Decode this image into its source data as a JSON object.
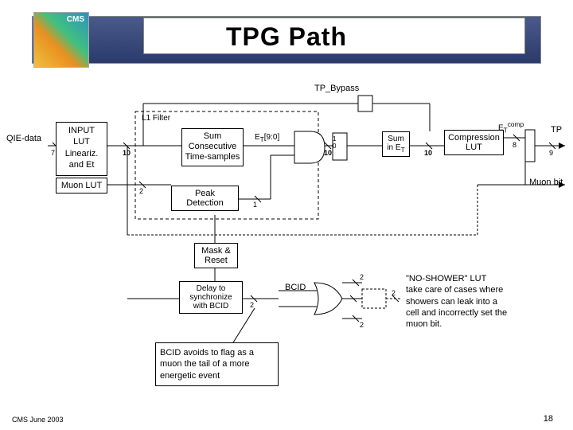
{
  "title": "TPG Path",
  "logo_text": "CMS",
  "footer": "CMS June 2003",
  "page_number": "18",
  "labels": {
    "tp_bypass": "TP_Bypass",
    "l1_filter": "L1 Filter",
    "qie_data": "QIE-data",
    "input_lut": "INPUT\nLUT\nLineariz.\nand Et",
    "muon_lut": "Muon LUT",
    "sum_block": "Sum\nConsecutive\nTime-samples",
    "et_90": "E_T[9:0]",
    "peak_det": "Peak\nDetection",
    "sum_et": "Sum\nin E_T",
    "comp_lut": "Compression\nLUT",
    "et_comp": "E_T comp",
    "tp": "TP",
    "muon_bit": "Muon bit",
    "mask_reset": "Mask &\nReset",
    "delay_sync": "Delay to\nsynchronize\nwith BCID",
    "bcid": "BCID",
    "no_shower": "\"NO-SHOWER\" LUT\ntake care of cases where\nshowers can leak into a\ncell and incorrectly set the\nmuon bit.",
    "bcid_note": "BCID avoids to flag as a\nmuon the tail of a more\nenergetic event"
  },
  "widths": {
    "b7": "7",
    "b10_1": "10",
    "b2": "2",
    "b10_2": "10",
    "b1": "1",
    "b10_3": "10",
    "b10_4": "10",
    "b8": "8",
    "b9": "9",
    "b2_2": "2",
    "b2_3": "2",
    "b2_4": "2",
    "b2_5": "2"
  },
  "colors": {
    "header_grad_top": "#4a5a8a",
    "header_grad_bot": "#2a3a6a",
    "highlight": "#ffff00"
  }
}
